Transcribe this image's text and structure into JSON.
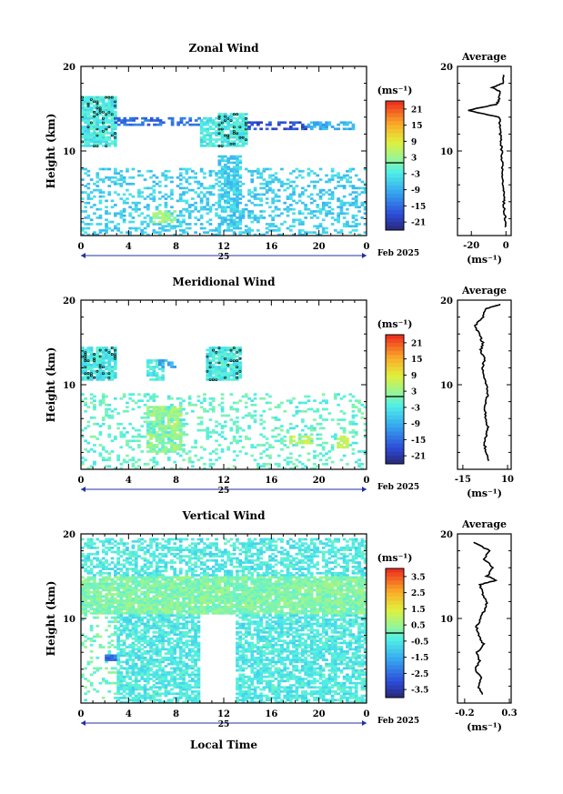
{
  "chart_data": [
    {
      "type": "heatmap",
      "title": "Zonal Wind",
      "ylabel": "Height (km)",
      "xlabel": "",
      "xticks": [
        "0",
        "4",
        "8",
        "12",
        "16",
        "20",
        "0"
      ],
      "xdate": "25",
      "xdate_right": "Feb 2025",
      "ylim": [
        0,
        20
      ],
      "yticks": [
        "10",
        "20"
      ],
      "colorbar": {
        "unit": "(ms⁻¹)",
        "ticks": [
          "21",
          "15",
          "9",
          "3",
          "-3",
          "-9",
          "-15",
          "-21"
        ],
        "range": [
          -24,
          24
        ]
      },
      "patches": [
        {
          "t0": 0.0,
          "t1": 3.0,
          "h0": 10.5,
          "h1": 16.5,
          "v": -3,
          "dense": 0.85
        },
        {
          "t0": 2.8,
          "t1": 10.0,
          "h0": 13.0,
          "h1": 14.0,
          "v": -15,
          "dense": 0.5
        },
        {
          "t0": 10.0,
          "t1": 11.5,
          "h0": 10.5,
          "h1": 14.0,
          "v": -3,
          "dense": 0.7
        },
        {
          "t0": 11.5,
          "t1": 14.0,
          "h0": 10.5,
          "h1": 14.5,
          "v": -3,
          "dense": 0.85
        },
        {
          "t0": 14.0,
          "t1": 19.0,
          "h0": 12.5,
          "h1": 13.5,
          "v": -18,
          "dense": 0.45
        },
        {
          "t0": 0.0,
          "t1": 24.0,
          "h0": 0.0,
          "h1": 8.0,
          "v": -6,
          "dense": 0.3
        },
        {
          "t0": 11.5,
          "t1": 13.5,
          "h0": 0.0,
          "h1": 9.5,
          "v": -6,
          "dense": 0.6
        },
        {
          "t0": 6.0,
          "t1": 8.0,
          "h0": 1.5,
          "h1": 3.0,
          "v": 3,
          "dense": 0.6
        },
        {
          "t0": 19.0,
          "t1": 23.0,
          "h0": 12.5,
          "h1": 13.5,
          "v": -9,
          "dense": 0.5
        }
      ],
      "average": {
        "xticks": [
          "-20",
          "0"
        ],
        "xlim": [
          -28,
          3
        ],
        "xlabel": "(ms⁻¹)",
        "heights": [
          1,
          2,
          3,
          4,
          5,
          6,
          7,
          8,
          9,
          10,
          11,
          12,
          13,
          14,
          14.8,
          15.5,
          16,
          17,
          17.5,
          18,
          19
        ],
        "values": [
          -0.3,
          -0.6,
          -1.0,
          -1.2,
          -1.5,
          -1.8,
          -2.0,
          -2.2,
          -2.3,
          -2.4,
          -2.8,
          -3.2,
          -3.5,
          -4.0,
          -22,
          -6,
          -4,
          -3,
          -8,
          -2,
          -1.5
        ]
      },
      "title_right": "Average"
    },
    {
      "type": "heatmap",
      "title": "Meridional Wind",
      "ylabel": "Height (km)",
      "xlabel": "",
      "xticks": [
        "0",
        "4",
        "8",
        "12",
        "16",
        "20",
        "0"
      ],
      "xdate": "25",
      "xdate_right": "Feb 2025",
      "ylim": [
        0,
        20
      ],
      "yticks": [
        "10",
        "20"
      ],
      "colorbar": {
        "unit": "(ms⁻¹)",
        "ticks": [
          "21",
          "15",
          "9",
          "3",
          "-3",
          "-9",
          "-15",
          "-21"
        ],
        "range": [
          -24,
          24
        ]
      },
      "patches": [
        {
          "t0": 0.0,
          "t1": 3.0,
          "h0": 10.5,
          "h1": 14.5,
          "v": -3,
          "dense": 0.85
        },
        {
          "t0": 5.5,
          "t1": 7.0,
          "h0": 10.5,
          "h1": 13.0,
          "v": -3,
          "dense": 0.75
        },
        {
          "t0": 10.5,
          "t1": 13.5,
          "h0": 10.5,
          "h1": 14.5,
          "v": -3,
          "dense": 0.85
        },
        {
          "t0": 5.5,
          "t1": 8.5,
          "h0": 2.0,
          "h1": 7.5,
          "v": 3,
          "dense": 0.8
        },
        {
          "t0": 0.0,
          "t1": 24.0,
          "h0": 0.0,
          "h1": 9.0,
          "v": -1,
          "dense": 0.2
        },
        {
          "t0": 17.5,
          "t1": 19.5,
          "h0": 3.0,
          "h1": 4.0,
          "v": 6,
          "dense": 0.8
        },
        {
          "t0": 21.5,
          "t1": 22.5,
          "h0": 2.5,
          "h1": 4.0,
          "v": 6,
          "dense": 0.8
        },
        {
          "t0": 6.5,
          "t1": 8.0,
          "h0": 12.0,
          "h1": 13.0,
          "v": -9,
          "dense": 0.6
        }
      ],
      "average": {
        "xticks": [
          "-15",
          "10"
        ],
        "xlim": [
          -18,
          12
        ],
        "xlabel": "(ms⁻¹)",
        "heights": [
          1,
          2,
          3,
          4,
          5,
          6,
          7,
          8,
          9,
          10,
          11,
          12,
          13,
          14,
          15,
          16,
          17,
          18,
          19,
          19.5
        ],
        "values": [
          -1,
          -2,
          -3,
          -2,
          -1,
          -2,
          -3,
          -2,
          -1,
          -2,
          -3,
          -4,
          -3,
          -5,
          -4,
          -6,
          -8,
          -4,
          -2,
          6
        ]
      },
      "title_right": "Average"
    },
    {
      "type": "heatmap",
      "title": "Vertical Wind",
      "ylabel": "Height (km)",
      "xlabel": "Local Time",
      "xticks": [
        "0",
        "4",
        "8",
        "12",
        "16",
        "20",
        "0"
      ],
      "xdate": "25",
      "xdate_right": "Feb 2025",
      "ylim": [
        0,
        20
      ],
      "yticks": [
        "10",
        "20"
      ],
      "colorbar": {
        "unit": "(ms⁻¹)",
        "ticks": [
          "3.5",
          "2.5",
          "1.5",
          "0.5",
          "-0.5",
          "-1.5",
          "-2.5",
          "-3.5"
        ],
        "range": [
          -4,
          4
        ]
      },
      "patches": [
        {
          "t0": 0.0,
          "t1": 24.0,
          "h0": 15.0,
          "h1": 19.5,
          "v": -0.5,
          "dense": 0.55
        },
        {
          "t0": 0.0,
          "t1": 24.0,
          "h0": 10.5,
          "h1": 15.0,
          "v": 0.2,
          "dense": 0.9
        },
        {
          "t0": 3.0,
          "t1": 10.0,
          "h0": 0.0,
          "h1": 10.5,
          "v": -0.5,
          "dense": 0.7
        },
        {
          "t0": 13.0,
          "t1": 24.0,
          "h0": 0.0,
          "h1": 10.5,
          "v": -0.5,
          "dense": 0.7
        },
        {
          "t0": 0.0,
          "t1": 3.0,
          "h0": 0.0,
          "h1": 10.5,
          "v": 0.0,
          "dense": 0.15
        },
        {
          "t0": 2.0,
          "t1": 2.8,
          "h0": 5.0,
          "h1": 5.6,
          "v": -2.5,
          "dense": 1.0
        }
      ],
      "average": {
        "xticks": [
          "-0.2",
          "0.3"
        ],
        "xlim": [
          -0.28,
          0.32
        ],
        "xlabel": "(ms⁻¹)",
        "heights": [
          1,
          2,
          3,
          4,
          5,
          6,
          7,
          8,
          9,
          10,
          11,
          12,
          13,
          14,
          14.5,
          15,
          16,
          17,
          18,
          19
        ],
        "values": [
          0.0,
          -0.05,
          -0.02,
          -0.08,
          -0.03,
          -0.06,
          0.01,
          -0.04,
          -0.07,
          -0.02,
          0.02,
          0.05,
          0.0,
          -0.03,
          0.15,
          0.05,
          0.12,
          0.02,
          0.08,
          -0.1
        ]
      },
      "title_right": "Average"
    }
  ]
}
